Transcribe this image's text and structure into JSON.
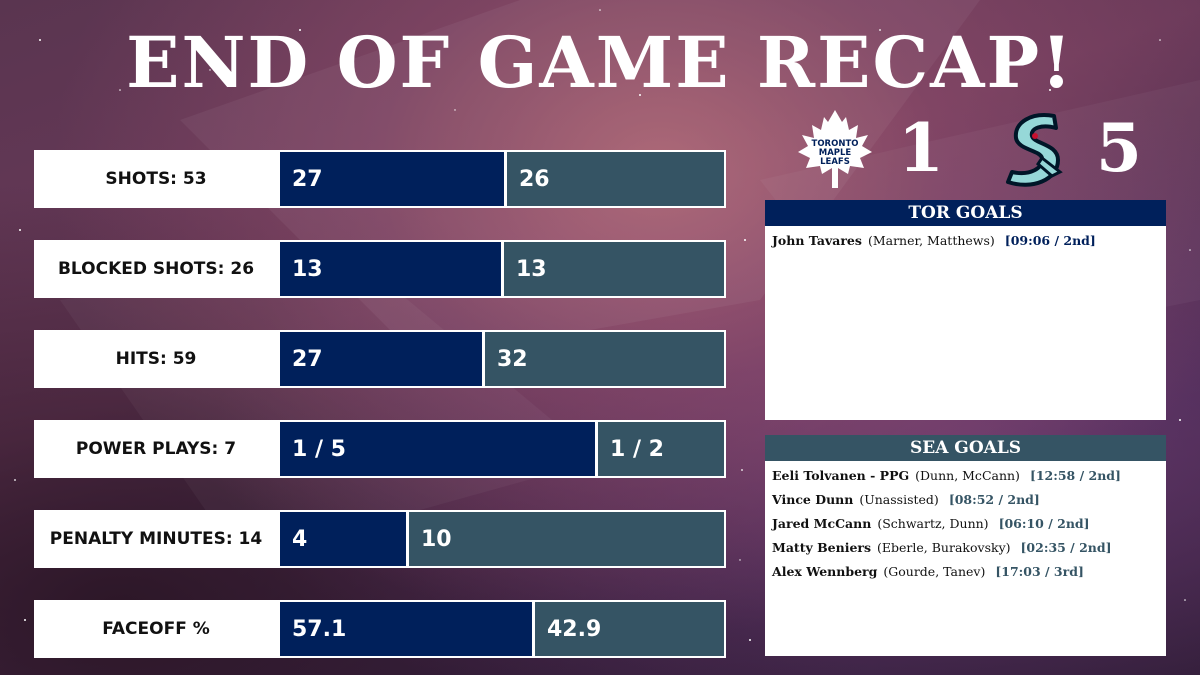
{
  "title": "END OF GAME RECAP!",
  "colors": {
    "tor": "#00205b",
    "sea": "#355464"
  },
  "score": {
    "tor": {
      "logo": "toronto-maple-leafs-logo",
      "logo_text": [
        "TORONTO",
        "MAPLE",
        "LEAFS"
      ],
      "goals": "1"
    },
    "sea": {
      "logo": "seattle-kraken-logo",
      "goals": "5"
    }
  },
  "stats": [
    {
      "label": "SHOTS: 53",
      "tor": "27",
      "sea": "26",
      "tor_share": 0.509
    },
    {
      "label": "BLOCKED SHOTS: 26",
      "tor": "13",
      "sea": "13",
      "tor_share": 0.5
    },
    {
      "label": "HITS: 59",
      "tor": "27",
      "sea": "32",
      "tor_share": 0.458
    },
    {
      "label": "POWER PLAYS: 7",
      "tor": "1 / 5",
      "sea": "1 / 2",
      "tor_share": 0.714
    },
    {
      "label": "PENALTY MINUTES: 14",
      "tor": "4",
      "sea": "10",
      "tor_share": 0.286
    },
    {
      "label": "FACEOFF %",
      "tor": "57.1",
      "sea": "42.9",
      "tor_share": 0.571
    }
  ],
  "tor_goals": {
    "header": "TOR GOALS",
    "goals": [
      {
        "scorer": "John Tavares",
        "assists": "(Marner, Matthews)",
        "time": "[09:06 / 2nd]"
      }
    ]
  },
  "sea_goals": {
    "header": "SEA GOALS",
    "goals": [
      {
        "scorer": "Eeli Tolvanen - PPG",
        "assists": "(Dunn, McCann)",
        "time": "[12:58 / 2nd]"
      },
      {
        "scorer": "Vince Dunn",
        "assists": "(Unassisted)",
        "time": "[08:52 / 2nd]"
      },
      {
        "scorer": "Jared McCann",
        "assists": "(Schwartz, Dunn)",
        "time": "[06:10 / 2nd]"
      },
      {
        "scorer": "Matty Beniers",
        "assists": "(Eberle, Burakovsky)",
        "time": "[02:35 / 2nd]"
      },
      {
        "scorer": "Alex Wennberg",
        "assists": "(Gourde, Tanev)",
        "time": "[17:03 / 3rd]"
      }
    ]
  }
}
